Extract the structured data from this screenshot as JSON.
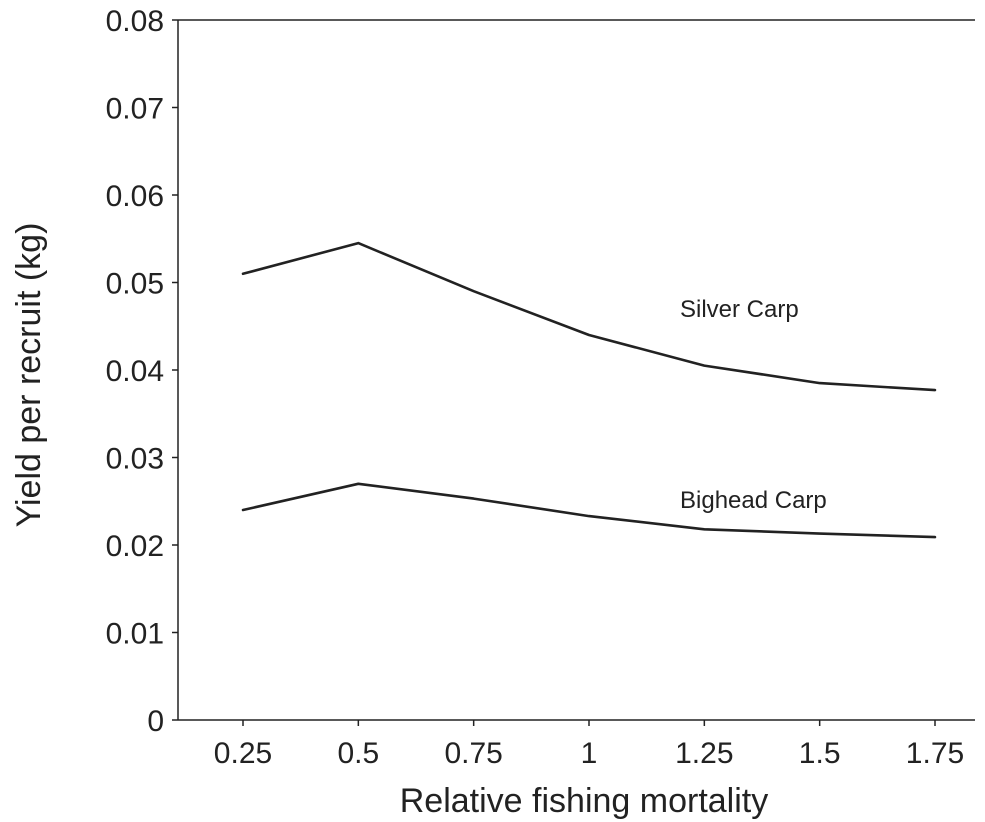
{
  "chart_data": {
    "type": "line",
    "title": "",
    "xlabel": "Relative fishing mortality",
    "ylabel": "Yield per recruit (kg)",
    "x": [
      0.25,
      0.5,
      0.75,
      1,
      1.25,
      1.5,
      1.75
    ],
    "x_tick_labels": [
      "0.25",
      "0.5",
      "0.75",
      "1",
      "1.25",
      "1.5",
      "1.75"
    ],
    "y_ticks": [
      0,
      0.01,
      0.02,
      0.03,
      0.04,
      0.05,
      0.06,
      0.07,
      0.08
    ],
    "y_tick_labels": [
      "0",
      "0.01",
      "0.02",
      "0.03",
      "0.04",
      "0.05",
      "0.06",
      "0.07",
      "0.08"
    ],
    "ylim": [
      0,
      0.08
    ],
    "grid": false,
    "legend": "none",
    "series": [
      {
        "name": "Silver Carp",
        "values": [
          0.051,
          0.0545,
          0.049,
          0.044,
          0.0405,
          0.0385,
          0.0377
        ],
        "color": "#222222"
      },
      {
        "name": "Bighead Carp",
        "values": [
          0.024,
          0.027,
          0.0253,
          0.0233,
          0.0218,
          0.0213,
          0.0209
        ],
        "color": "#222222"
      }
    ]
  }
}
